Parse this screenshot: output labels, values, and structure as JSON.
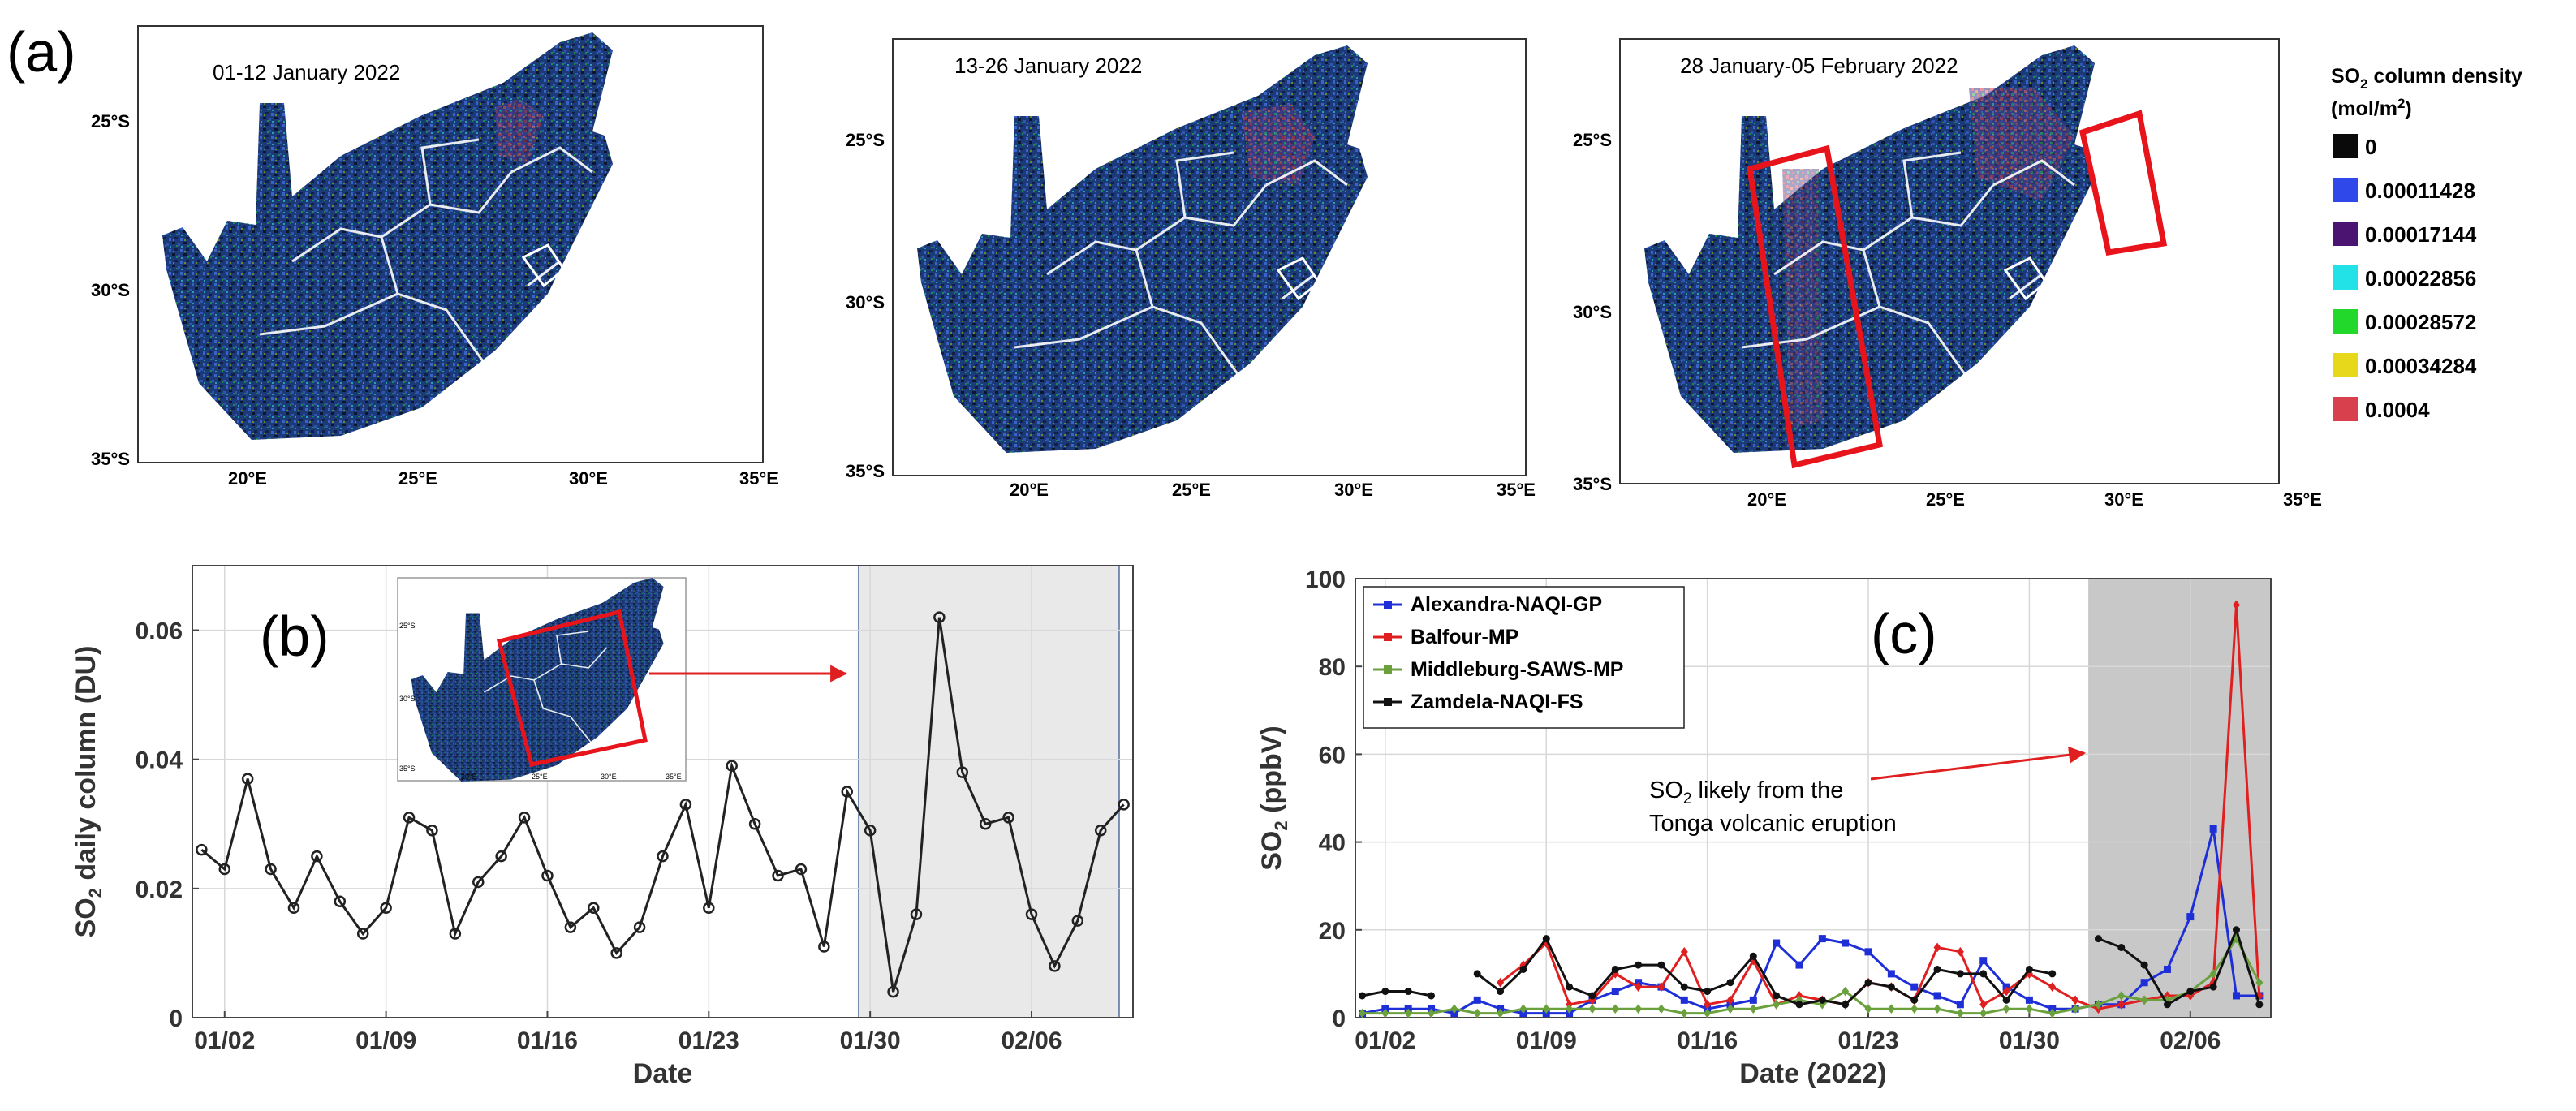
{
  "figure": {
    "panel_a": {
      "label": "(a)",
      "maps": [
        {
          "period": "01-12 January 2022"
        },
        {
          "period": "13-26 January 2022"
        },
        {
          "period": "28 January-05 February 2022"
        }
      ],
      "lat_ticks": [
        "25°S",
        "30°S",
        "35°S"
      ],
      "lon_ticks": [
        "20°E",
        "25°E",
        "30°E",
        "35°E"
      ],
      "legend": {
        "title_pre": "SO",
        "title_sub": "2",
        "title_post": " column density",
        "units_pre": "(mol/m",
        "units_sup": "2",
        "units_post": ")",
        "items": [
          {
            "label": "0",
            "color": "#0a0a0a"
          },
          {
            "label": "0.00011428",
            "color": "#2f48ea"
          },
          {
            "label": "0.00017144",
            "color": "#4a1470"
          },
          {
            "label": "0.00022856",
            "color": "#22e2e8"
          },
          {
            "label": "0.00028572",
            "color": "#22d82a"
          },
          {
            "label": "0.00034284",
            "color": "#e8d81c"
          },
          {
            "label": "0.0004",
            "color": "#d8404e"
          }
        ]
      }
    },
    "panel_b": {
      "label": "(b)",
      "annotation_arrow_color": "#e02020"
    },
    "panel_c": {
      "label": "(c)",
      "annotation_line1_pre": "SO",
      "annotation_line1_sub": "2",
      "annotation_line1_post": " likely from the",
      "annotation_line2": "Tonga volcanic eruption"
    }
  },
  "chart_data": [
    {
      "id": "b",
      "type": "line",
      "title": "",
      "xlabel": "Date",
      "ylabel_pre": "SO",
      "ylabel_sub": "2",
      "ylabel_post": " daily column (DU)",
      "x_tick_labels": [
        "01/02",
        "01/09",
        "01/16",
        "01/23",
        "01/30",
        "02/06"
      ],
      "x_tick_days": [
        2,
        9,
        16,
        23,
        30,
        37
      ],
      "xlim": [
        0.6,
        41.4
      ],
      "ylim": [
        0,
        0.07
      ],
      "y_ticks": [
        0,
        0.02,
        0.04,
        0.06
      ],
      "y_tick_labels": [
        "0",
        "0.02",
        "0.04",
        "0.06"
      ],
      "grid": true,
      "highlight_days": [
        29.5,
        40.8
      ],
      "series": [
        {
          "name": "SO2 daily column",
          "color": "#222222",
          "days": [
            1,
            2,
            3,
            4,
            5,
            6,
            7,
            8,
            9,
            10,
            11,
            12,
            13,
            14,
            15,
            16,
            17,
            18,
            19,
            20,
            21,
            22,
            23,
            24,
            25,
            26,
            27,
            28,
            29,
            30,
            31,
            32,
            33,
            34,
            35,
            36,
            37,
            38,
            39,
            40,
            41
          ],
          "values": [
            0.026,
            0.023,
            0.037,
            0.023,
            0.017,
            0.025,
            0.018,
            0.013,
            0.017,
            0.031,
            0.029,
            0.013,
            0.021,
            0.025,
            0.031,
            0.022,
            0.014,
            0.017,
            0.01,
            0.014,
            0.025,
            0.033,
            0.017,
            0.039,
            0.03,
            0.022,
            0.023,
            0.011,
            0.035,
            0.029,
            0.004,
            0.016,
            0.062,
            0.038,
            0.03,
            0.031,
            0.016,
            0.008,
            0.015,
            0.029,
            0.033
          ]
        }
      ]
    },
    {
      "id": "c",
      "type": "line",
      "title": "",
      "xlabel": "Date (2022)",
      "ylabel_pre": "SO",
      "ylabel_sub": "2",
      "ylabel_post": " (ppbV)",
      "x_tick_labels": [
        "01/02",
        "01/09",
        "01/16",
        "01/23",
        "01/30",
        "02/06"
      ],
      "x_tick_days": [
        2,
        9,
        16,
        23,
        30,
        37
      ],
      "xlim": [
        0.7,
        40.5
      ],
      "ylim": [
        0,
        100
      ],
      "y_ticks": [
        0,
        20,
        40,
        60,
        80,
        100
      ],
      "y_tick_labels": [
        "0",
        "20",
        "40",
        "60",
        "80",
        "100"
      ],
      "grid": true,
      "legend_position": "top-left",
      "highlight_days": [
        32.6,
        40.5
      ],
      "series": [
        {
          "name": "Alexandra-NAQI-GP",
          "color": "#1f2fd8",
          "marker": "square",
          "days": [
            1,
            2,
            3,
            4,
            5,
            6,
            7,
            8,
            9,
            10,
            11,
            12,
            13,
            14,
            15,
            16,
            17,
            18,
            19,
            20,
            21,
            22,
            23,
            24,
            25,
            26,
            27,
            28,
            29,
            30,
            31,
            32,
            33,
            34,
            35,
            36,
            37,
            38,
            39,
            40
          ],
          "values": [
            1,
            2,
            2,
            2,
            1,
            4,
            2,
            1,
            1,
            1,
            4,
            6,
            8,
            7,
            4,
            2,
            3,
            4,
            17,
            12,
            18,
            17,
            15,
            10,
            7,
            5,
            3,
            13,
            7,
            4,
            2,
            2,
            3,
            3,
            8,
            11,
            23,
            43,
            5,
            5
          ]
        },
        {
          "name": "Balfour-MP",
          "color": "#e02020",
          "marker": "diamond",
          "days": [
            7,
            8,
            9,
            10,
            11,
            12,
            13,
            14,
            15,
            16,
            17,
            18,
            19,
            20,
            21,
            22,
            23,
            24,
            25,
            26,
            27,
            28,
            29,
            30,
            31,
            32,
            33,
            34,
            35,
            36,
            37,
            38,
            39,
            40
          ],
          "values": [
            8,
            12,
            17,
            3,
            4,
            10,
            7,
            7,
            15,
            3,
            4,
            13,
            3,
            5,
            4,
            3,
            8,
            7,
            4,
            16,
            15,
            3,
            6,
            10,
            7,
            4,
            2,
            3,
            4,
            5,
            5,
            8,
            94,
            5
          ]
        },
        {
          "name": "Middleburg-SAWS-MP",
          "color": "#6aa13c",
          "marker": "diamond",
          "days": [
            1,
            2,
            3,
            4,
            5,
            6,
            7,
            8,
            9,
            10,
            11,
            12,
            13,
            14,
            15,
            16,
            17,
            18,
            19,
            20,
            21,
            22,
            23,
            24,
            25,
            26,
            27,
            28,
            29,
            30,
            31,
            32,
            33,
            34,
            35,
            36,
            37,
            38,
            39,
            40
          ],
          "values": [
            1,
            1,
            1,
            1,
            2,
            1,
            1,
            2,
            2,
            2,
            2,
            2,
            2,
            2,
            1,
            1,
            2,
            2,
            3,
            4,
            3,
            6,
            2,
            2,
            2,
            2,
            1,
            1,
            2,
            2,
            1,
            2,
            3,
            5,
            4,
            4,
            6,
            10,
            18,
            8
          ]
        },
        {
          "name": "Zamdela-NAQI-FS",
          "color": "#111111",
          "marker": "circle",
          "days": [
            1,
            2,
            3,
            4,
            6,
            7,
            8,
            9,
            10,
            11,
            12,
            13,
            14,
            15,
            16,
            17,
            18,
            19,
            20,
            21,
            22,
            23,
            24,
            25,
            26,
            27,
            28,
            29,
            30,
            31,
            33,
            34,
            35,
            36,
            37,
            38,
            39,
            40
          ],
          "values": [
            5,
            6,
            6,
            5,
            10,
            6,
            11,
            18,
            7,
            5,
            11,
            12,
            12,
            7,
            6,
            8,
            14,
            5,
            3,
            4,
            3,
            8,
            7,
            4,
            11,
            10,
            10,
            4,
            11,
            10,
            18,
            16,
            12,
            3,
            6,
            7,
            20,
            3
          ]
        }
      ]
    }
  ]
}
